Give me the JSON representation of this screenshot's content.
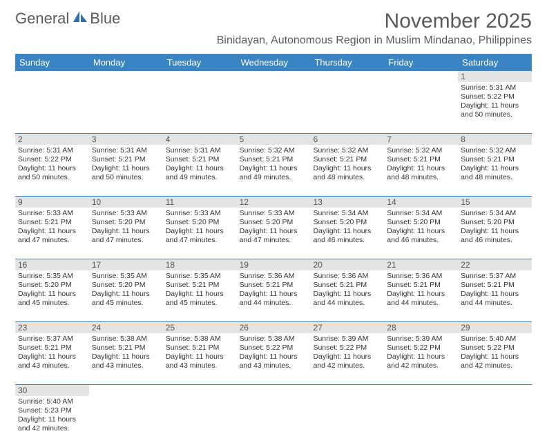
{
  "logo": {
    "text1": "General",
    "text2": "Blue",
    "icon_color": "#2f6fae"
  },
  "title": "November 2025",
  "location": "Binidayan, Autonomous Region in Muslim Mindanao, Philippines",
  "colors": {
    "header_bg": "#3b84c4",
    "header_text": "#ffffff",
    "daynum_bg": "#e4e4e4",
    "rule": "#3b84c4",
    "text": "#333333",
    "muted": "#5a5a5a"
  },
  "day_headers": [
    "Sunday",
    "Monday",
    "Tuesday",
    "Wednesday",
    "Thursday",
    "Friday",
    "Saturday"
  ],
  "weeks": [
    {
      "nums": [
        "",
        "",
        "",
        "",
        "",
        "",
        "1"
      ],
      "cells": [
        null,
        null,
        null,
        null,
        null,
        null,
        {
          "sunrise": "Sunrise: 5:31 AM",
          "sunset": "Sunset: 5:22 PM",
          "d1": "Daylight: 11 hours",
          "d2": "and 50 minutes."
        }
      ]
    },
    {
      "nums": [
        "2",
        "3",
        "4",
        "5",
        "6",
        "7",
        "8"
      ],
      "cells": [
        {
          "sunrise": "Sunrise: 5:31 AM",
          "sunset": "Sunset: 5:22 PM",
          "d1": "Daylight: 11 hours",
          "d2": "and 50 minutes."
        },
        {
          "sunrise": "Sunrise: 5:31 AM",
          "sunset": "Sunset: 5:21 PM",
          "d1": "Daylight: 11 hours",
          "d2": "and 50 minutes."
        },
        {
          "sunrise": "Sunrise: 5:31 AM",
          "sunset": "Sunset: 5:21 PM",
          "d1": "Daylight: 11 hours",
          "d2": "and 49 minutes."
        },
        {
          "sunrise": "Sunrise: 5:32 AM",
          "sunset": "Sunset: 5:21 PM",
          "d1": "Daylight: 11 hours",
          "d2": "and 49 minutes."
        },
        {
          "sunrise": "Sunrise: 5:32 AM",
          "sunset": "Sunset: 5:21 PM",
          "d1": "Daylight: 11 hours",
          "d2": "and 48 minutes."
        },
        {
          "sunrise": "Sunrise: 5:32 AM",
          "sunset": "Sunset: 5:21 PM",
          "d1": "Daylight: 11 hours",
          "d2": "and 48 minutes."
        },
        {
          "sunrise": "Sunrise: 5:32 AM",
          "sunset": "Sunset: 5:21 PM",
          "d1": "Daylight: 11 hours",
          "d2": "and 48 minutes."
        }
      ]
    },
    {
      "nums": [
        "9",
        "10",
        "11",
        "12",
        "13",
        "14",
        "15"
      ],
      "cells": [
        {
          "sunrise": "Sunrise: 5:33 AM",
          "sunset": "Sunset: 5:21 PM",
          "d1": "Daylight: 11 hours",
          "d2": "and 47 minutes."
        },
        {
          "sunrise": "Sunrise: 5:33 AM",
          "sunset": "Sunset: 5:20 PM",
          "d1": "Daylight: 11 hours",
          "d2": "and 47 minutes."
        },
        {
          "sunrise": "Sunrise: 5:33 AM",
          "sunset": "Sunset: 5:20 PM",
          "d1": "Daylight: 11 hours",
          "d2": "and 47 minutes."
        },
        {
          "sunrise": "Sunrise: 5:33 AM",
          "sunset": "Sunset: 5:20 PM",
          "d1": "Daylight: 11 hours",
          "d2": "and 47 minutes."
        },
        {
          "sunrise": "Sunrise: 5:34 AM",
          "sunset": "Sunset: 5:20 PM",
          "d1": "Daylight: 11 hours",
          "d2": "and 46 minutes."
        },
        {
          "sunrise": "Sunrise: 5:34 AM",
          "sunset": "Sunset: 5:20 PM",
          "d1": "Daylight: 11 hours",
          "d2": "and 46 minutes."
        },
        {
          "sunrise": "Sunrise: 5:34 AM",
          "sunset": "Sunset: 5:20 PM",
          "d1": "Daylight: 11 hours",
          "d2": "and 46 minutes."
        }
      ]
    },
    {
      "nums": [
        "16",
        "17",
        "18",
        "19",
        "20",
        "21",
        "22"
      ],
      "cells": [
        {
          "sunrise": "Sunrise: 5:35 AM",
          "sunset": "Sunset: 5:20 PM",
          "d1": "Daylight: 11 hours",
          "d2": "and 45 minutes."
        },
        {
          "sunrise": "Sunrise: 5:35 AM",
          "sunset": "Sunset: 5:20 PM",
          "d1": "Daylight: 11 hours",
          "d2": "and 45 minutes."
        },
        {
          "sunrise": "Sunrise: 5:35 AM",
          "sunset": "Sunset: 5:21 PM",
          "d1": "Daylight: 11 hours",
          "d2": "and 45 minutes."
        },
        {
          "sunrise": "Sunrise: 5:36 AM",
          "sunset": "Sunset: 5:21 PM",
          "d1": "Daylight: 11 hours",
          "d2": "and 44 minutes."
        },
        {
          "sunrise": "Sunrise: 5:36 AM",
          "sunset": "Sunset: 5:21 PM",
          "d1": "Daylight: 11 hours",
          "d2": "and 44 minutes."
        },
        {
          "sunrise": "Sunrise: 5:36 AM",
          "sunset": "Sunset: 5:21 PM",
          "d1": "Daylight: 11 hours",
          "d2": "and 44 minutes."
        },
        {
          "sunrise": "Sunrise: 5:37 AM",
          "sunset": "Sunset: 5:21 PM",
          "d1": "Daylight: 11 hours",
          "d2": "and 44 minutes."
        }
      ]
    },
    {
      "nums": [
        "23",
        "24",
        "25",
        "26",
        "27",
        "28",
        "29"
      ],
      "cells": [
        {
          "sunrise": "Sunrise: 5:37 AM",
          "sunset": "Sunset: 5:21 PM",
          "d1": "Daylight: 11 hours",
          "d2": "and 43 minutes."
        },
        {
          "sunrise": "Sunrise: 5:38 AM",
          "sunset": "Sunset: 5:21 PM",
          "d1": "Daylight: 11 hours",
          "d2": "and 43 minutes."
        },
        {
          "sunrise": "Sunrise: 5:38 AM",
          "sunset": "Sunset: 5:21 PM",
          "d1": "Daylight: 11 hours",
          "d2": "and 43 minutes."
        },
        {
          "sunrise": "Sunrise: 5:38 AM",
          "sunset": "Sunset: 5:22 PM",
          "d1": "Daylight: 11 hours",
          "d2": "and 43 minutes."
        },
        {
          "sunrise": "Sunrise: 5:39 AM",
          "sunset": "Sunset: 5:22 PM",
          "d1": "Daylight: 11 hours",
          "d2": "and 42 minutes."
        },
        {
          "sunrise": "Sunrise: 5:39 AM",
          "sunset": "Sunset: 5:22 PM",
          "d1": "Daylight: 11 hours",
          "d2": "and 42 minutes."
        },
        {
          "sunrise": "Sunrise: 5:40 AM",
          "sunset": "Sunset: 5:22 PM",
          "d1": "Daylight: 11 hours",
          "d2": "and 42 minutes."
        }
      ]
    },
    {
      "nums": [
        "30",
        "",
        "",
        "",
        "",
        "",
        ""
      ],
      "cells": [
        {
          "sunrise": "Sunrise: 5:40 AM",
          "sunset": "Sunset: 5:23 PM",
          "d1": "Daylight: 11 hours",
          "d2": "and 42 minutes."
        },
        null,
        null,
        null,
        null,
        null,
        null
      ]
    }
  ]
}
